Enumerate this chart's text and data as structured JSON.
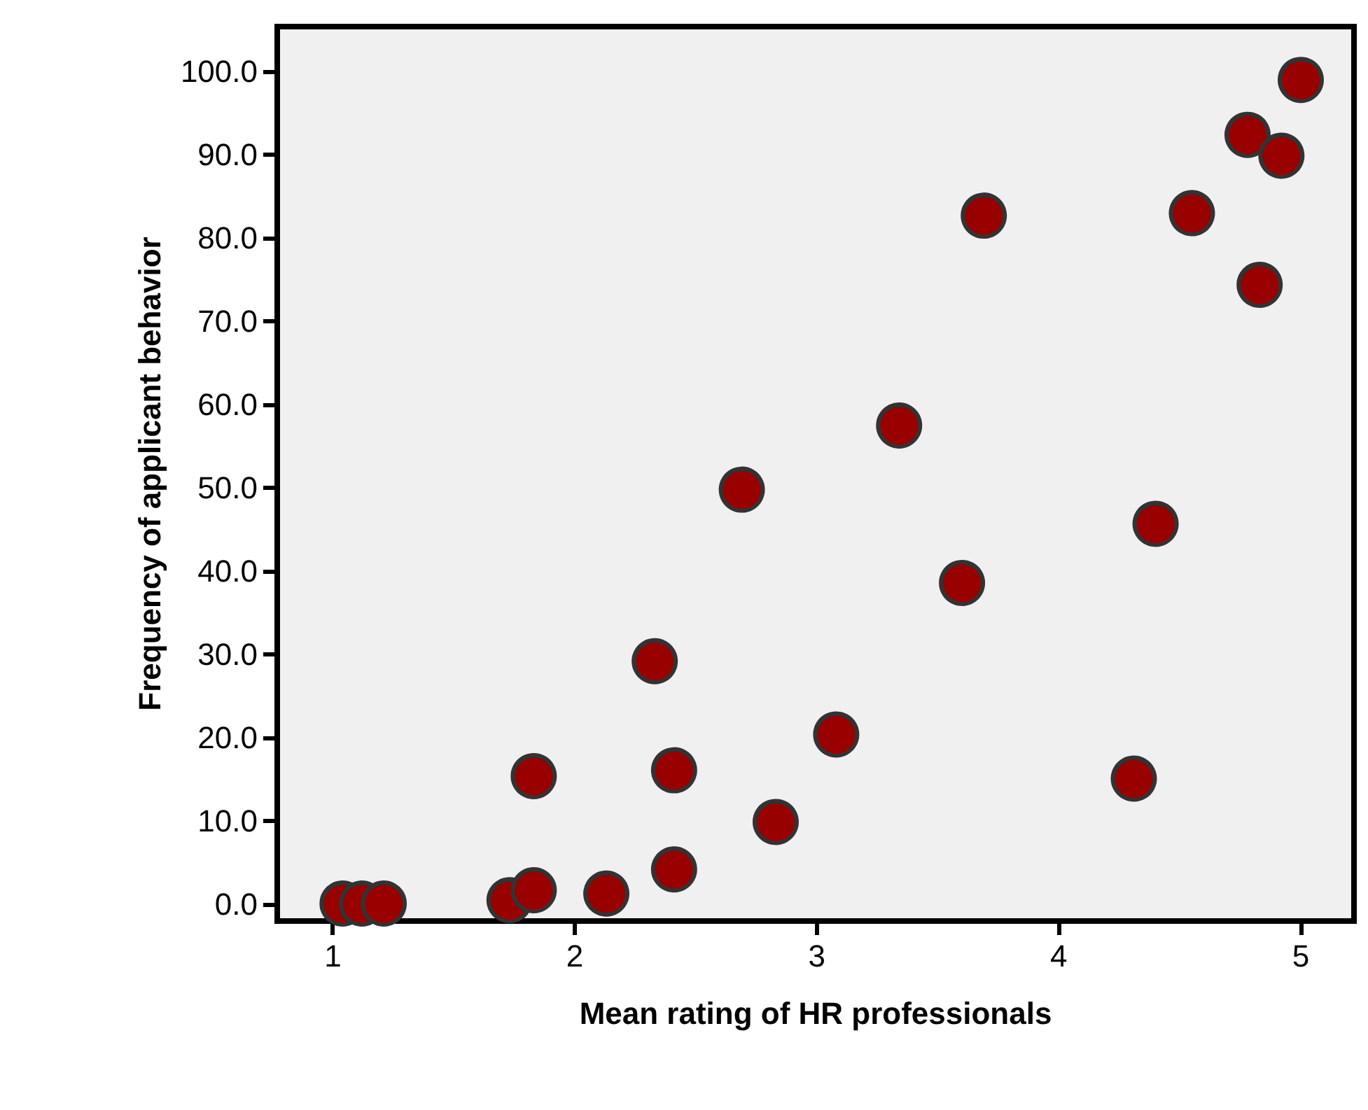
{
  "chart_data": {
    "type": "scatter",
    "xlabel": "Mean rating of HR professionals",
    "ylabel": "Frequency of applicant behavior",
    "x": [
      1.04,
      1.12,
      1.21,
      1.73,
      1.83,
      1.83,
      2.13,
      2.33,
      2.41,
      2.41,
      2.69,
      2.83,
      3.08,
      3.34,
      3.6,
      3.69,
      4.31,
      4.4,
      4.55,
      4.78,
      4.83,
      4.92,
      5.0
    ],
    "series": [
      {
        "color": "#990000",
        "values": [
          0.1,
          0.1,
          0.1,
          0.5,
          1.7,
          15.4,
          1.3,
          29.2,
          16.1,
          4.2,
          49.8,
          9.9,
          20.4,
          57.5,
          38.6,
          82.7,
          15.1,
          45.7,
          83.0,
          92.4,
          74.4,
          89.9,
          99.0
        ]
      }
    ],
    "marker": "circle",
    "xlim": [
      0.77,
      5.22
    ],
    "xticks": [
      1,
      2,
      3,
      4,
      5
    ],
    "ylim": [
      -2,
      105.4
    ],
    "yticks": [
      {
        "value": 0,
        "label": "0.0"
      },
      {
        "value": 10,
        "label": "10.0"
      },
      {
        "value": 20,
        "label": "20.0"
      },
      {
        "value": 30,
        "label": "30.0"
      },
      {
        "value": 40,
        "label": "40.0"
      },
      {
        "value": 50,
        "label": "50.0"
      },
      {
        "value": 60,
        "label": "60.0"
      },
      {
        "value": 70,
        "label": "70.0"
      },
      {
        "value": 80,
        "label": "80.0"
      },
      {
        "value": 90,
        "label": "90.0"
      },
      {
        "value": 100,
        "label": "100.0"
      }
    ],
    "grid": false
  }
}
